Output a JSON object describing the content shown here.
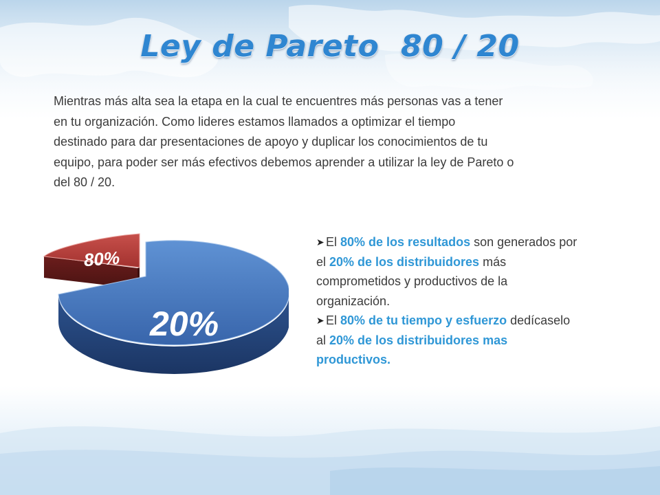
{
  "slide": {
    "title": "Ley de Pareto  80 / 20",
    "intro_lines": [
      "Mientras más alta sea la etapa en la cual te encuentres más personas vas a tener",
      "en tu organización. Como lideres  estamos llamados a optimizar el tiempo",
      "destinado para dar presentaciones  de apoyo y duplicar los conocimientos de tu",
      "equipo, para poder ser más efectivos debemos aprender a utilizar la ley de Pareto o",
      "del 80 / 20."
    ]
  },
  "pie": {
    "slice_small_label": "80%",
    "slice_large_label": "20%",
    "colors": {
      "small": "#b53a36",
      "large": "#3f74bf"
    }
  },
  "bullets": {
    "marker_icon": "arrow-bullet-icon",
    "b1": {
      "t1": "El ",
      "h1": "80% de los resultados",
      "t2": " son generados por",
      "t3": "el ",
      "h2": "20% de los distribuidores",
      "t4": " más",
      "t5": "comprometidos y productivos de la",
      "t6": "organización."
    },
    "b2": {
      "t1": "El ",
      "h1": "80% de tu tiempo y esfuerzo",
      "t2": " dedícaselo",
      "t3": "al ",
      "h2": "20% de los distribuidores  mas",
      "h3": "productivos."
    }
  }
}
